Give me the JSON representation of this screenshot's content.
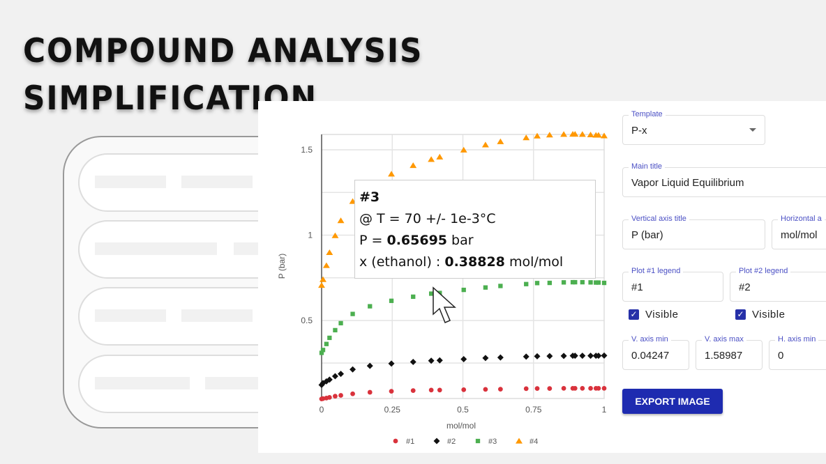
{
  "hero": {
    "line1": "COMPOUND ANALYSIS",
    "line2": "SIMPLIFICATION"
  },
  "form": {
    "template": {
      "label": "Template",
      "value": "P-x"
    },
    "main_title": {
      "label": "Main title",
      "value": "Vapor Liquid Equilibrium"
    },
    "vertical_axis_title": {
      "label": "Vertical axis title",
      "value": "P (bar)"
    },
    "horizontal_axis_title": {
      "label": "Horizontal a",
      "value": "mol/mol"
    },
    "plot1_legend": {
      "label": "Plot #1 legend",
      "value": "#1",
      "visible_label": "Visible",
      "visible": true
    },
    "plot2_legend": {
      "label": "Plot #2 legend",
      "value": "#2",
      "visible_label": "Visible",
      "visible": true
    },
    "v_axis_min": {
      "label": "V. axis min",
      "value": "0.04247"
    },
    "v_axis_max": {
      "label": "V. axis max",
      "value": "1.58987"
    },
    "h_axis_min": {
      "label": "H. axis min",
      "value": "0"
    },
    "export_label": "EXPORT IMAGE",
    "accent": "#1e2bb0"
  },
  "tooltip": {
    "title": "#3",
    "line1": "@ T = 70 +/- 1e-3°C",
    "p_prefix": "P = ",
    "p_value": "0.65695",
    "p_unit": " bar",
    "x_prefix": "x (ethanol) : ",
    "x_value": "0.38828",
    "x_unit": " mol/mol"
  },
  "chart_data": {
    "type": "scatter",
    "xlabel": "mol/mol",
    "ylabel": "P (bar)",
    "xlim": [
      0,
      1
    ],
    "ylim": [
      0.04247,
      1.58987
    ],
    "grid": true,
    "legend": "bottom",
    "xticks": [
      "0",
      "0.25",
      "0.5",
      "0.75",
      "1"
    ],
    "yticks": [
      "0.5",
      "1",
      "1.5"
    ],
    "x": [
      0,
      0.005,
      0.017,
      0.028,
      0.048,
      0.068,
      0.11,
      0.171,
      0.247,
      0.324,
      0.388,
      0.418,
      0.503,
      0.58,
      0.633,
      0.724,
      0.763,
      0.807,
      0.857,
      0.889,
      0.897,
      0.923,
      0.952,
      0.971,
      0.98,
      1
    ],
    "series": [
      {
        "name": "#1",
        "marker": "circle",
        "color": "#d9323c",
        "values": [
          0.04,
          0.042,
          0.045,
          0.049,
          0.056,
          0.061,
          0.07,
          0.079,
          0.085,
          0.089,
          0.092,
          0.092,
          0.094,
          0.096,
          0.097,
          0.1,
          0.101,
          0.101,
          0.102,
          0.102,
          0.102,
          0.102,
          0.102,
          0.102,
          0.102,
          0.102
        ]
      },
      {
        "name": "#2",
        "marker": "diamond",
        "color": "#111111",
        "values": [
          0.122,
          0.133,
          0.143,
          0.153,
          0.173,
          0.187,
          0.213,
          0.234,
          0.247,
          0.257,
          0.264,
          0.266,
          0.273,
          0.28,
          0.283,
          0.288,
          0.29,
          0.291,
          0.292,
          0.293,
          0.293,
          0.293,
          0.293,
          0.293,
          0.293,
          0.294
        ]
      },
      {
        "name": "#3",
        "marker": "square",
        "color": "#4caf50",
        "values": [
          0.31,
          0.327,
          0.362,
          0.398,
          0.443,
          0.484,
          0.538,
          0.583,
          0.615,
          0.639,
          0.657,
          0.661,
          0.679,
          0.693,
          0.702,
          0.713,
          0.719,
          0.72,
          0.723,
          0.724,
          0.724,
          0.724,
          0.723,
          0.722,
          0.722,
          0.72
        ]
      },
      {
        "name": "#4",
        "marker": "triangle",
        "color": "#ff9800",
        "values": [
          0.706,
          0.74,
          0.822,
          0.898,
          0.997,
          1.085,
          1.198,
          1.28,
          1.358,
          1.408,
          1.444,
          1.458,
          1.499,
          1.529,
          1.548,
          1.571,
          1.581,
          1.587,
          1.591,
          1.592,
          1.592,
          1.591,
          1.588,
          1.586,
          1.586,
          1.582
        ]
      }
    ]
  }
}
